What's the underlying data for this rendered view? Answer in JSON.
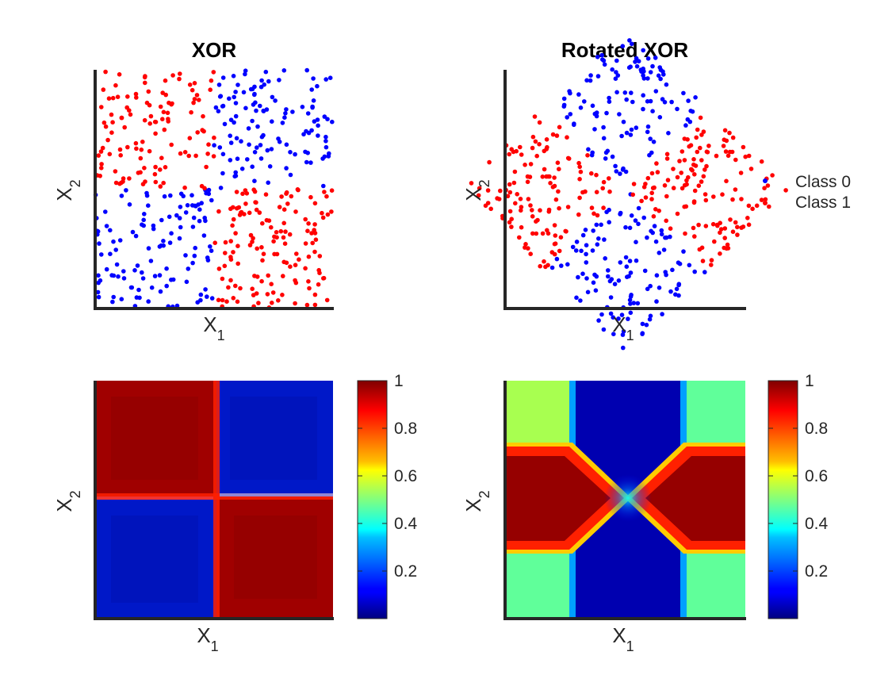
{
  "chart_data": [
    {
      "type": "scatter",
      "title": "XOR",
      "xlabel": "X",
      "xlabel_sub": "1",
      "ylabel": "X",
      "ylabel_sub": "2",
      "xlim": [
        -1,
        1
      ],
      "ylim": [
        -1,
        1
      ],
      "colors": {
        "Class 0": "#0000ff",
        "Class 1": "#ff0000"
      },
      "series": [
        {
          "name": "Class 0",
          "color": "#0000ff",
          "region": "x<0 & y<0 or x>0 & y>0",
          "approx_points": 250
        },
        {
          "name": "Class 1",
          "color": "#ff0000",
          "region": "x<0 & y>0 or x>0 & y<0",
          "approx_points": 250
        }
      ]
    },
    {
      "type": "scatter",
      "title": "Rotated XOR",
      "xlabel": "X",
      "xlabel_sub": "1",
      "ylabel": "X",
      "ylabel_sub": "2",
      "xlim": [
        -1.5,
        1.5
      ],
      "ylim": [
        -1.5,
        1.5
      ],
      "legend": {
        "position": "right",
        "entries": [
          "Class 0",
          "Class 1"
        ]
      },
      "series": [
        {
          "name": "Class 0",
          "color": "#0000ff",
          "region": "|y|>|x| within diamond",
          "approx_points": 250
        },
        {
          "name": "Class 1",
          "color": "#ff0000",
          "region": "|x|>|y| within diamond",
          "approx_points": 250
        }
      ]
    },
    {
      "type": "heatmap",
      "xlabel": "X",
      "xlabel_sub": "1",
      "ylabel": "X",
      "ylabel_sub": "2",
      "colormap": "jet",
      "colorbar": {
        "min": 0,
        "max": 1,
        "ticks": [
          0.2,
          0.4,
          0.6,
          0.8,
          1
        ],
        "tick_labels": [
          "0.2",
          "0.4",
          "0.6",
          "0.8",
          "1"
        ]
      },
      "blocks": [
        {
          "quadrant": "top-left",
          "value": 0.97
        },
        {
          "quadrant": "top-right",
          "value": 0.05
        },
        {
          "quadrant": "bottom-left",
          "value": 0.05
        },
        {
          "quadrant": "bottom-right",
          "value": 0.97
        }
      ]
    },
    {
      "type": "heatmap",
      "xlabel": "X",
      "xlabel_sub": "1",
      "ylabel": "X",
      "ylabel_sub": "2",
      "colormap": "jet",
      "colorbar": {
        "min": 0,
        "max": 1,
        "ticks": [
          0.2,
          0.4,
          0.6,
          0.8,
          1
        ],
        "tick_labels": [
          "0.2",
          "0.4",
          "0.6",
          "0.8",
          "1"
        ]
      },
      "regions": [
        {
          "region": "top-left corner",
          "value": 0.55
        },
        {
          "region": "top-right corner",
          "value": 0.45
        },
        {
          "region": "bottom-left corner",
          "value": 0.45
        },
        {
          "region": "bottom-right corner",
          "value": 0.45
        },
        {
          "region": "center columns",
          "value": 0.05
        },
        {
          "region": "left/right middle bands",
          "value": 0.97
        }
      ]
    }
  ]
}
